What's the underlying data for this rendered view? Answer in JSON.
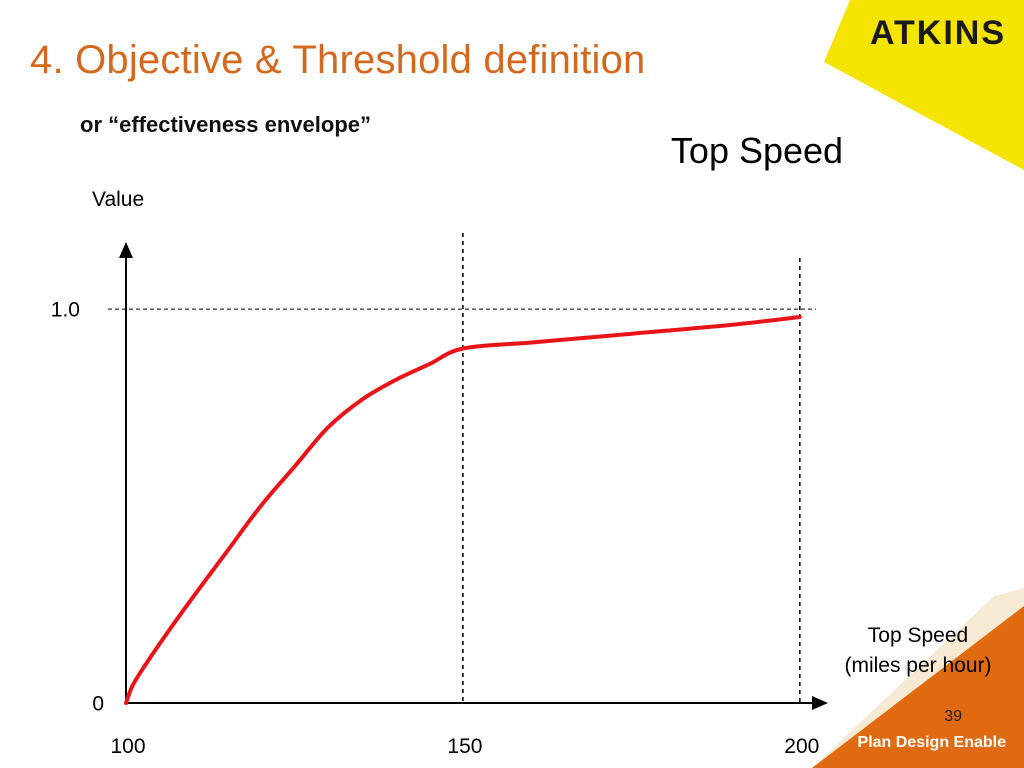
{
  "slide": {
    "title": "4. Objective & Threshold definition",
    "subtitle": "or “effectiveness envelope”",
    "logo_text": "ATKINS",
    "tagline": "Plan Design Enable",
    "page_number": "39"
  },
  "colors": {
    "title": "#d2691e",
    "brand_yellow": "#f5e400",
    "footer_orange": "#e06a10",
    "curve": "#e8141a"
  },
  "chart_data": {
    "type": "line",
    "title": "Top Speed",
    "ylabel": "Value",
    "xlabel_lines": [
      "Top Speed",
      "(miles per hour)"
    ],
    "x_ticks": [
      {
        "value": 100,
        "label": "100"
      },
      {
        "value": 150,
        "label": "150"
      },
      {
        "value": 200,
        "label": "200"
      }
    ],
    "y_ticks": [
      {
        "value": 0,
        "label": "0"
      },
      {
        "value": 1.0,
        "label": "1.0"
      }
    ],
    "xlim": [
      100,
      207
    ],
    "ylim": [
      0,
      1.15
    ],
    "reference_lines": {
      "vertical": [
        150,
        200
      ],
      "horizontal": [
        1.0
      ]
    },
    "series": [
      {
        "x": [
          100,
          101,
          103,
          106,
          110,
          115,
          120,
          125,
          130,
          135,
          140,
          145,
          150,
          160,
          170,
          180,
          190,
          200
        ],
        "y": [
          0.0,
          0.045,
          0.1,
          0.175,
          0.27,
          0.385,
          0.5,
          0.6,
          0.7,
          0.77,
          0.82,
          0.86,
          0.9,
          0.915,
          0.93,
          0.945,
          0.96,
          0.98
        ]
      }
    ]
  }
}
